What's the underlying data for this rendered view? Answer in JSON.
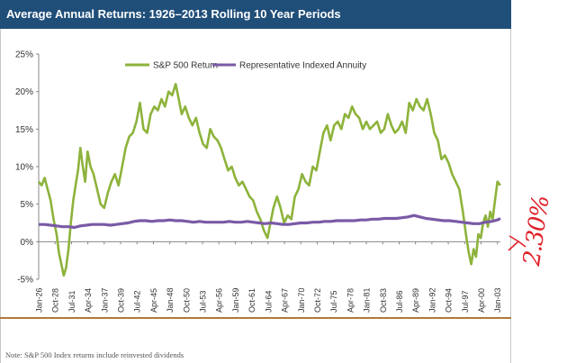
{
  "header": {
    "title": "Average Annual Returns: 1926–2013 Rolling 10 Year Periods"
  },
  "note": "Note: S&P 500 Index returns include reinvested dividends",
  "annotation": {
    "text": "2.30%"
  },
  "colors": {
    "header": "#1f4e79",
    "sp500": "#8db33b",
    "annuity": "#7a5aa6",
    "rule": "#b07a3a",
    "annotation": "#e0202a"
  },
  "chart_data": {
    "type": "line",
    "title": "",
    "xlabel": "",
    "ylabel": "",
    "ylim": [
      -5,
      25
    ],
    "yticks": [
      -5,
      0,
      5,
      10,
      15,
      20,
      25
    ],
    "ytick_labels": [
      "-5%",
      "0%",
      "5%",
      "10%",
      "15%",
      "20%",
      "25%"
    ],
    "x_ticks": [
      "Jan-26",
      "Oct-28",
      "Jul-31",
      "Apr-34",
      "Jan-37",
      "Oct-39",
      "Jul-42",
      "Apr-45",
      "Jan-48",
      "Oct-50",
      "Jul-53",
      "Apr-56",
      "Jan-59",
      "Oct-61",
      "Jul-64",
      "Apr-67",
      "Jan-70",
      "Oct-72",
      "Jul-75",
      "Apr-78",
      "Jan-81",
      "Oct-83",
      "Jul-86",
      "Apr-89",
      "Jan-92",
      "Oct-94",
      "Jul-97",
      "Apr-00",
      "Jan-03"
    ],
    "grid": false,
    "legend": "top",
    "series": [
      {
        "name": "S&P 500 Return",
        "x": [
          1926.0,
          1926.5,
          1927.0,
          1927.5,
          1928.0,
          1928.5,
          1929.0,
          1929.4,
          1929.8,
          1930.2,
          1930.6,
          1931.0,
          1931.4,
          1931.8,
          1932.2,
          1932.6,
          1933.0,
          1933.4,
          1933.8,
          1934.2,
          1934.7,
          1935.2,
          1935.8,
          1936.4,
          1937.0,
          1937.6,
          1938.2,
          1938.8,
          1939.4,
          1940.0,
          1940.6,
          1941.2,
          1941.8,
          1942.4,
          1943.0,
          1943.6,
          1944.2,
          1944.8,
          1945.4,
          1946.0,
          1946.6,
          1947.2,
          1947.8,
          1948.4,
          1949.0,
          1949.5,
          1950.0,
          1950.6,
          1951.2,
          1951.8,
          1952.4,
          1953.0,
          1953.6,
          1954.2,
          1954.8,
          1955.4,
          1956.0,
          1956.6,
          1957.2,
          1957.8,
          1958.4,
          1959.0,
          1959.6,
          1960.2,
          1960.8,
          1961.4,
          1962.0,
          1962.6,
          1963.2,
          1963.8,
          1964.4,
          1964.9,
          1965.4,
          1966.0,
          1966.6,
          1967.2,
          1967.8,
          1968.4,
          1969.0,
          1969.6,
          1970.2,
          1970.8,
          1971.4,
          1972.0,
          1972.6,
          1973.2,
          1973.8,
          1974.4,
          1975.0,
          1975.6,
          1976.2,
          1976.8,
          1977.4,
          1978.0,
          1978.6,
          1979.2,
          1979.8,
          1980.4,
          1981.0,
          1981.6,
          1982.2,
          1982.8,
          1983.4,
          1984.0,
          1984.6,
          1985.2,
          1985.8,
          1986.4,
          1987.0,
          1987.6,
          1988.2,
          1988.8,
          1989.4,
          1990.0,
          1990.6,
          1991.2,
          1991.8,
          1992.4,
          1993.0,
          1993.6,
          1994.2,
          1994.8,
          1995.4,
          1996.0,
          1996.6,
          1997.2,
          1997.8,
          1998.2,
          1998.6,
          1999.0,
          1999.4,
          1999.8,
          2000.2,
          2000.6,
          2001.0,
          2001.4,
          2001.8,
          2002.2,
          2002.6,
          2003.0,
          2003.5
        ],
        "values": [
          8.0,
          7.5,
          8.5,
          7.0,
          5.5,
          3.0,
          1.0,
          -1.5,
          -3.0,
          -4.5,
          -3.5,
          -1.0,
          2.5,
          5.5,
          7.5,
          9.5,
          12.5,
          10.0,
          8.0,
          12.0,
          10.0,
          9.0,
          7.0,
          5.0,
          4.5,
          6.5,
          8.0,
          9.0,
          7.5,
          10.0,
          12.5,
          14.0,
          14.5,
          16.0,
          18.5,
          15.0,
          14.5,
          17.0,
          18.0,
          17.5,
          19.0,
          18.0,
          20.0,
          19.5,
          21.0,
          19.0,
          17.0,
          18.0,
          16.5,
          15.5,
          16.5,
          14.5,
          13.0,
          12.5,
          15.0,
          14.0,
          13.5,
          12.5,
          11.0,
          9.5,
          10.0,
          8.5,
          7.5,
          8.0,
          7.0,
          6.0,
          5.5,
          4.0,
          3.0,
          1.5,
          0.5,
          2.5,
          4.5,
          6.0,
          4.5,
          2.5,
          3.5,
          3.0,
          6.0,
          7.0,
          9.0,
          8.0,
          7.5,
          10.0,
          9.5,
          12.0,
          14.5,
          15.5,
          13.5,
          15.5,
          16.0,
          15.0,
          17.0,
          16.5,
          18.0,
          17.0,
          16.5,
          15.0,
          16.0,
          15.0,
          15.5,
          16.0,
          14.5,
          15.0,
          17.0,
          15.5,
          14.5,
          15.0,
          16.0,
          14.5,
          18.5,
          17.5,
          19.0,
          18.0,
          17.5,
          19.0,
          17.0,
          14.5,
          13.5,
          11.0,
          11.5,
          10.5,
          9.0,
          8.0,
          7.0,
          4.0,
          0.5,
          -1.5,
          -3.0,
          -1.0,
          -2.0,
          1.0,
          0.5,
          2.5,
          3.5,
          2.0,
          4.0,
          3.0,
          5.5,
          8.0,
          7.5
        ]
      },
      {
        "name": "Representative Indexed Annuity",
        "x": [
          1926.0,
          1927.0,
          1928.0,
          1929.0,
          1930.0,
          1931.0,
          1932.0,
          1933.0,
          1934.0,
          1935.0,
          1936.0,
          1937.0,
          1938.0,
          1939.0,
          1940.0,
          1941.0,
          1942.0,
          1943.0,
          1944.0,
          1945.0,
          1946.0,
          1947.0,
          1948.0,
          1949.0,
          1950.0,
          1951.0,
          1952.0,
          1953.0,
          1954.0,
          1955.0,
          1956.0,
          1957.0,
          1958.0,
          1959.0,
          1960.0,
          1961.0,
          1962.0,
          1963.0,
          1964.0,
          1965.0,
          1966.0,
          1967.0,
          1968.0,
          1969.0,
          1970.0,
          1971.0,
          1972.0,
          1973.0,
          1974.0,
          1975.0,
          1976.0,
          1977.0,
          1978.0,
          1979.0,
          1980.0,
          1981.0,
          1982.0,
          1983.0,
          1984.0,
          1985.0,
          1986.0,
          1987.0,
          1988.0,
          1989.0,
          1990.0,
          1991.0,
          1992.0,
          1993.0,
          1994.0,
          1995.0,
          1996.0,
          1997.0,
          1998.0,
          1999.0,
          2000.0,
          2001.0,
          2002.0,
          2003.0,
          2003.5
        ],
        "values": [
          2.3,
          2.3,
          2.2,
          2.1,
          2.0,
          2.0,
          1.9,
          2.1,
          2.2,
          2.3,
          2.3,
          2.3,
          2.2,
          2.3,
          2.4,
          2.5,
          2.7,
          2.8,
          2.8,
          2.7,
          2.8,
          2.8,
          2.9,
          2.8,
          2.8,
          2.7,
          2.6,
          2.7,
          2.6,
          2.6,
          2.6,
          2.6,
          2.7,
          2.6,
          2.6,
          2.7,
          2.6,
          2.5,
          2.4,
          2.5,
          2.4,
          2.3,
          2.3,
          2.4,
          2.5,
          2.5,
          2.6,
          2.6,
          2.7,
          2.7,
          2.8,
          2.8,
          2.8,
          2.8,
          2.9,
          2.9,
          3.0,
          3.0,
          3.1,
          3.1,
          3.1,
          3.2,
          3.3,
          3.5,
          3.3,
          3.1,
          3.0,
          2.9,
          2.8,
          2.8,
          2.7,
          2.6,
          2.5,
          2.4,
          2.4,
          2.6,
          2.7,
          2.9,
          3.1
        ]
      }
    ]
  }
}
